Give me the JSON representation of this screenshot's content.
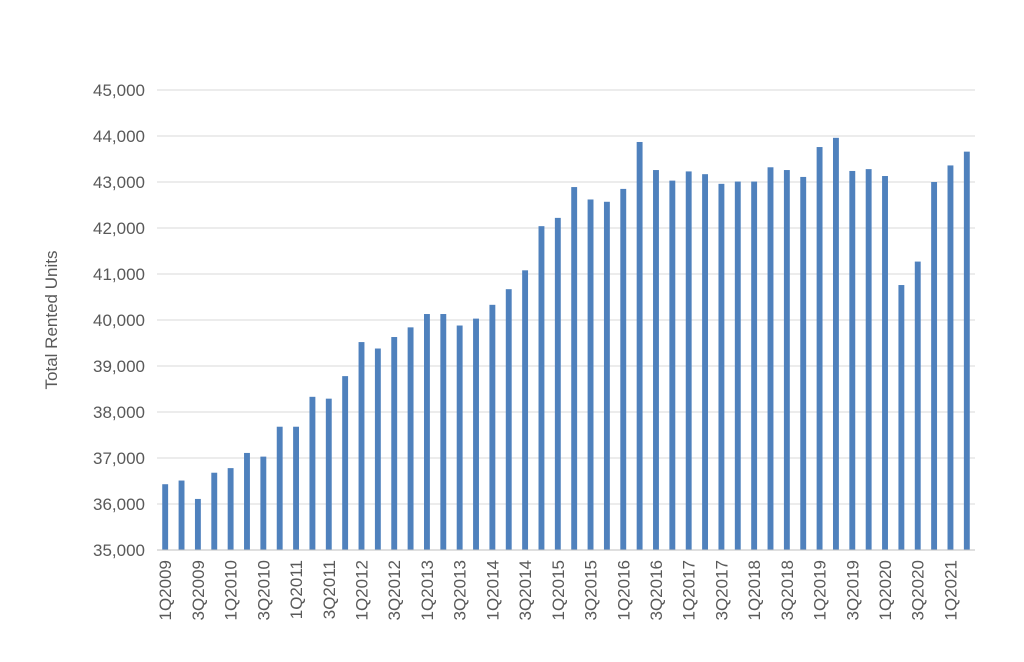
{
  "chart_data": {
    "type": "bar",
    "title": "",
    "xlabel": "",
    "ylabel": "Total Rented Units",
    "ylim": [
      35000,
      45000
    ],
    "yticks": [
      35000,
      36000,
      37000,
      38000,
      39000,
      40000,
      41000,
      42000,
      43000,
      44000,
      45000
    ],
    "ytick_labels": [
      "35,000",
      "36,000",
      "37,000",
      "38,000",
      "39,000",
      "40,000",
      "41,000",
      "42,000",
      "43,000",
      "44,000",
      "45,000"
    ],
    "grid": true,
    "legend": "none",
    "bar_color": "#4F81BD",
    "categories": [
      "1Q2009",
      "2Q2009",
      "3Q2009",
      "4Q2009",
      "1Q2010",
      "2Q2010",
      "3Q2010",
      "4Q2010",
      "1Q2011",
      "2Q2011",
      "3Q2011",
      "4Q2011",
      "1Q2012",
      "2Q2012",
      "3Q2012",
      "4Q2012",
      "1Q2013",
      "2Q2013",
      "3Q2013",
      "4Q2013",
      "1Q2014",
      "2Q2014",
      "3Q2014",
      "4Q2014",
      "1Q2015",
      "2Q2015",
      "3Q2015",
      "4Q2015",
      "1Q2016",
      "2Q2016",
      "3Q2016",
      "4Q2016",
      "1Q2017",
      "2Q2017",
      "3Q2017",
      "4Q2017",
      "1Q2018",
      "2Q2018",
      "3Q2018",
      "4Q2018",
      "1Q2019",
      "2Q2019",
      "3Q2019",
      "4Q2019",
      "1Q2020",
      "2Q2020",
      "3Q2020",
      "4Q2020",
      "1Q2021",
      "2Q2021"
    ],
    "x_labels_shown": [
      "1Q2009",
      "3Q2009",
      "1Q2010",
      "3Q2010",
      "1Q2011",
      "3Q2011",
      "1Q2012",
      "3Q2012",
      "1Q2013",
      "3Q2013",
      "1Q2014",
      "3Q2014",
      "1Q2015",
      "3Q2015",
      "1Q2016",
      "3Q2016",
      "1Q2017",
      "3Q2017",
      "1Q2018",
      "3Q2018",
      "1Q2019",
      "3Q2019",
      "1Q2020",
      "3Q2020",
      "1Q2021"
    ],
    "values": [
      36430,
      36510,
      36110,
      36680,
      36780,
      37110,
      37030,
      37680,
      37680,
      38330,
      38290,
      38780,
      39520,
      39380,
      39630,
      39840,
      40130,
      40130,
      39880,
      40030,
      40330,
      40670,
      41080,
      42040,
      42220,
      42890,
      42620,
      42570,
      42850,
      43870,
      43260,
      43030,
      43230,
      43170,
      42960,
      43010,
      43010,
      43320,
      43260,
      43110,
      43760,
      43960,
      43240,
      43280,
      43130,
      40760,
      41270,
      43000,
      43360,
      43660
    ]
  }
}
